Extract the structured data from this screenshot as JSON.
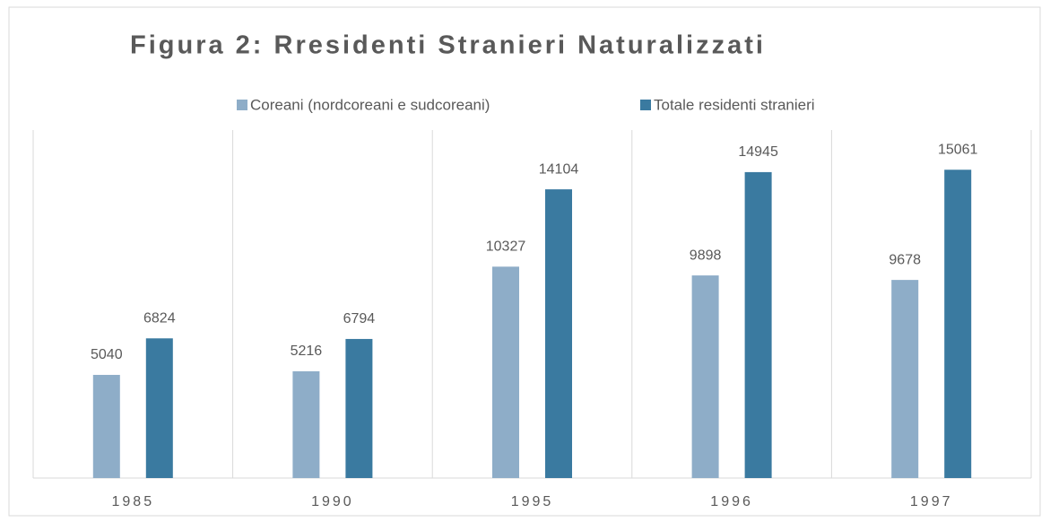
{
  "chart_data": {
    "type": "bar",
    "title": "Figura 2: Rresidenti Stranieri Naturalizzati",
    "categories": [
      "1985",
      "1990",
      "1995",
      "1996",
      "1997"
    ],
    "series": [
      {
        "name": "Coreani (nordcoreani e sudcoreani)",
        "color": "#8eadc8",
        "values": [
          5040,
          5216,
          10327,
          9898,
          9678
        ]
      },
      {
        "name": "Totale residenti stranieri",
        "color": "#3a7aa0",
        "values": [
          6824,
          6794,
          14104,
          14945,
          15061
        ]
      }
    ],
    "ylim": [
      0,
      17000
    ],
    "legend": "top",
    "grid": true
  }
}
